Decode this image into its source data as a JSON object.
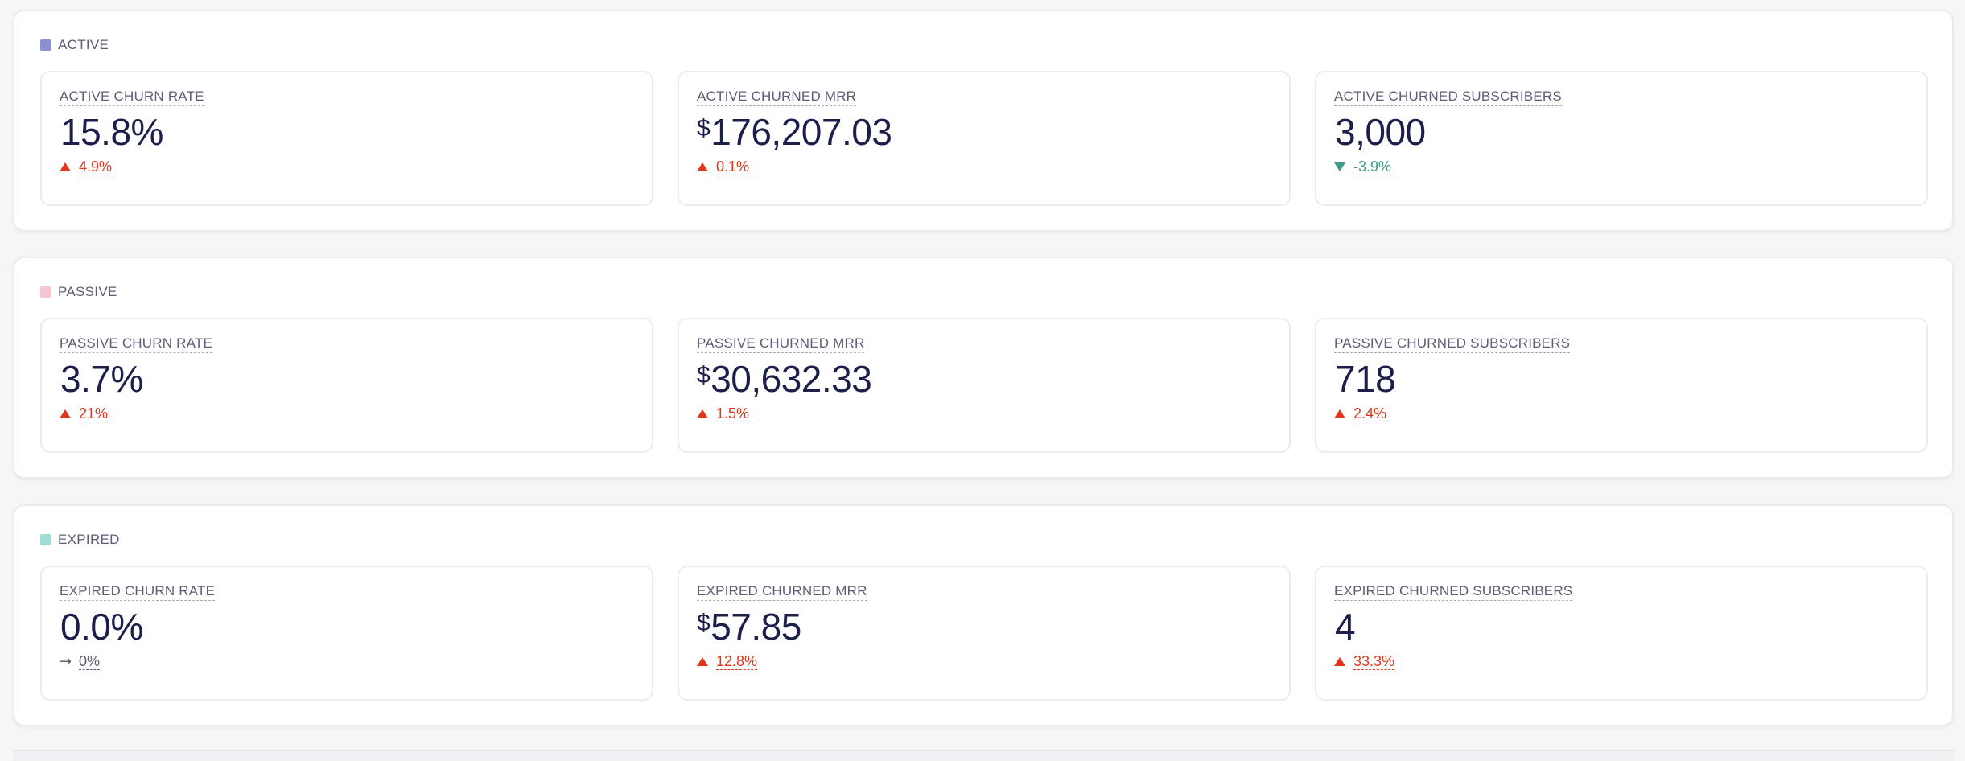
{
  "sections": [
    {
      "title": "ACTIVE",
      "color": "#8a8fd2",
      "metrics": [
        {
          "label": "ACTIVE CHURN RATE",
          "currency": "",
          "value": "15.8%",
          "delta": "4.9%",
          "trend": "up"
        },
        {
          "label": "ACTIVE CHURNED MRR",
          "currency": "$",
          "value": "176,207.03",
          "delta": "0.1%",
          "trend": "up"
        },
        {
          "label": "ACTIVE CHURNED SUBSCRIBERS",
          "currency": "",
          "value": "3,000",
          "delta": "-3.9%",
          "trend": "down"
        }
      ]
    },
    {
      "title": "PASSIVE",
      "color": "#f7c4d4",
      "metrics": [
        {
          "label": "PASSIVE CHURN RATE",
          "currency": "",
          "value": "3.7%",
          "delta": "21%",
          "trend": "up"
        },
        {
          "label": "PASSIVE CHURNED MRR",
          "currency": "$",
          "value": "30,632.33",
          "delta": "1.5%",
          "trend": "up"
        },
        {
          "label": "PASSIVE CHURNED SUBSCRIBERS",
          "currency": "",
          "value": "718",
          "delta": "2.4%",
          "trend": "up"
        }
      ]
    },
    {
      "title": "EXPIRED",
      "color": "#9fdcd6",
      "metrics": [
        {
          "label": "EXPIRED CHURN RATE",
          "currency": "",
          "value": "0.0%",
          "delta": "0%",
          "trend": "flat"
        },
        {
          "label": "EXPIRED CHURNED MRR",
          "currency": "$",
          "value": "57.85",
          "delta": "12.8%",
          "trend": "up"
        },
        {
          "label": "EXPIRED CHURNED SUBSCRIBERS",
          "currency": "",
          "value": "4",
          "delta": "33.3%",
          "trend": "up"
        }
      ]
    }
  ],
  "trend_icons": {
    "up": "triangle-up-icon",
    "down": "triangle-down-icon",
    "flat": "arrow-right-icon"
  },
  "colors": {
    "up": "#e0361c",
    "down": "#3e9b86",
    "flat": "#5b5e76"
  }
}
